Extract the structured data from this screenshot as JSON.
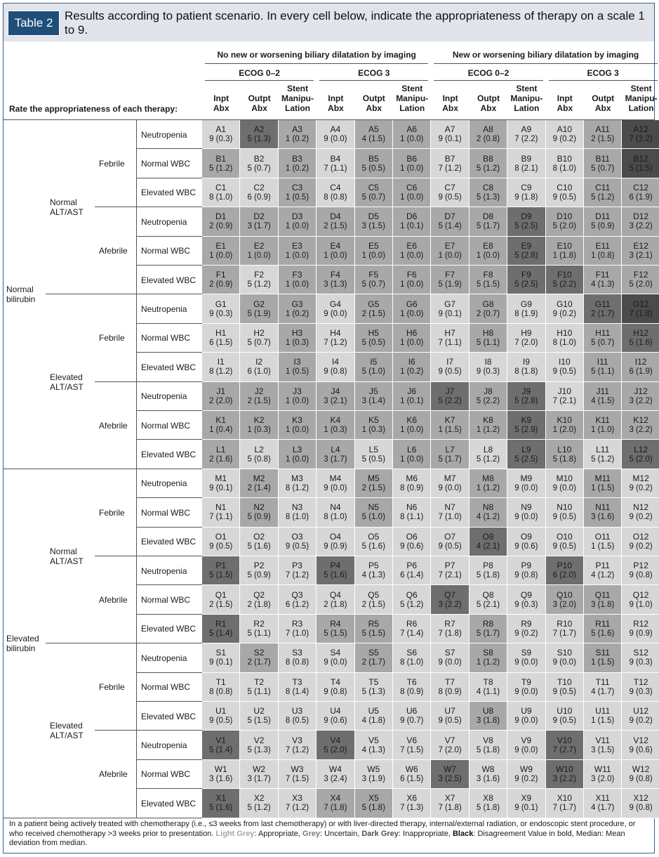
{
  "header": {
    "table_label": "Table 2",
    "title": "Results according to patient scenario. In every cell below, indicate the appropriateness of therapy on a scale 1 to 9."
  },
  "column_groups": {
    "imaging": [
      "No new or worsening biliary dilatation by imaging",
      "New or worsening biliary dilatation by imaging"
    ],
    "ecog": [
      "ECOG 0–2",
      "ECOG 3",
      "ECOG 0–2",
      "ECOG 3"
    ],
    "therapies": [
      "Inpt\nAbx",
      "Outpt\nAbx",
      "Stent\nManipu-\nLation"
    ]
  },
  "row_header_label": "Rate the appropriateness of each therapy:",
  "row_labels": {
    "bilirubin": [
      "Normal bilirubin",
      "Elevated bilirubin"
    ],
    "alt": [
      "Normal ALT/AST",
      "Elevated ALT/AST"
    ],
    "fever": [
      "Febrile",
      "Afebrile"
    ],
    "wbc": [
      "Neutropenia",
      "Normal WBC",
      "Elevated WBC"
    ]
  },
  "tone_legend": {
    "L": "#d7d7d7",
    "M": "#a8a8a8",
    "D": "#6e6e6e",
    "B": "#4b4b4b"
  },
  "rows": [
    {
      "letter": "A",
      "cells": [
        "9 (0.3)|L",
        "5 (1.3)|D",
        "1 (0.2)|M",
        "9 (0.0)|L",
        "4 (1.5)|M",
        "1 (0.0)|M",
        "9 (0.1)|L",
        "2 (0.8)|M",
        "7 (2.2)|L",
        "9 (0.2)|L",
        "2 (1.5)|M",
        "7 (2.2)|B"
      ]
    },
    {
      "letter": "B",
      "cells": [
        "5 (1.2)|M",
        "5 (0.7)|L",
        "1 (0.2)|M",
        "7 (1.1)|L",
        "5 (0.5)|M",
        "1 (0.0)|M",
        "7 (1.2)|L",
        "5 (1.2)|M",
        "8 (2.1)|L",
        "8 (1.0)|L",
        "5 (0.7)|M",
        "5 (1.5)|B"
      ]
    },
    {
      "letter": "C",
      "cells": [
        "8 (1.0)|L",
        "6 (0.9)|L",
        "1 (0.5)|M",
        "8 (0.8)|L",
        "5 (0.7)|M",
        "1 (0.0)|M",
        "9 (0.5)|L",
        "5 (1.3)|M",
        "9 (1.8)|L",
        "9 (0.5)|L",
        "5 (1.2)|M",
        "6 (1.9)|M"
      ]
    },
    {
      "letter": "D",
      "cells": [
        "2 (0.9)|M",
        "3 (1.7)|M",
        "1 (0.0)|M",
        "2 (1.5)|M",
        "3 (1.5)|M",
        "1 (0.1)|M",
        "5 (1.4)|M",
        "5 (1.7)|M",
        "5 (2.5)|D",
        "5 (2.0)|M",
        "5 (0.9)|M",
        "3 (2.2)|M"
      ]
    },
    {
      "letter": "E",
      "cells": [
        "1 (0.0)|M",
        "1 (0.0)|M",
        "1 (0.0)|M",
        "1 (0.0)|M",
        "1 (0.0)|M",
        "1 (0.0)|M",
        "1 (0.0)|M",
        "1 (0.0)|M",
        "5 (2.8)|D",
        "1 (1.8)|M",
        "1 (0.8)|M",
        "3 (2.1)|M"
      ]
    },
    {
      "letter": "F",
      "cells": [
        "2 (0.9)|M",
        "5 (1.2)|L",
        "1 (0.0)|M",
        "3 (1.3)|M",
        "5 (0.7)|M",
        "1 (0.0)|M",
        "5 (1.9)|M",
        "5 (1.5)|M",
        "5 (2.5)|D",
        "5 (2.2)|D",
        "4 (1.3)|M",
        "5 (2.0)|M"
      ]
    },
    {
      "letter": "G",
      "cells": [
        "9 (0.3)|L",
        "5 (1.9)|M",
        "1 (0.2)|M",
        "9 (0.0)|L",
        "2 (1.5)|M",
        "1 (0.0)|M",
        "9 (0.1)|L",
        "2 (0.7)|M",
        "8 (1.9)|L",
        "9 (0.2)|L",
        "2 (1.7)|D",
        "7 (1.8)|B"
      ]
    },
    {
      "letter": "H",
      "cells": [
        "6 (1.5)|L",
        "5 (0.7)|L",
        "1 (0.3)|M",
        "7 (1.2)|L",
        "5 (0.5)|M",
        "1 (0.0)|M",
        "7 (1.1)|L",
        "5 (1.1)|M",
        "7 (2.0)|L",
        "8 (1.0)|L",
        "5 (0.7)|M",
        "5 (1.6)|D"
      ]
    },
    {
      "letter": "I",
      "cells": [
        "8 (1.2)|L",
        "6 (1.0)|L",
        "1 (0.5)|M",
        "9 (0.8)|L",
        "5 (1.0)|M",
        "1 (0.2)|M",
        "9 (0.5)|L",
        "9 (0.3)|L",
        "8 (1.8)|L",
        "9 (0.5)|L",
        "5 (1.1)|M",
        "6 (1.9)|M"
      ]
    },
    {
      "letter": "J",
      "cells": [
        "2 (2.0)|M",
        "2 (1.5)|M",
        "1 (0.0)|M",
        "3 (2.1)|M",
        "3 (1.4)|M",
        "1 (0.1)|M",
        "5 (2.2)|D",
        "5 (2.2)|M",
        "5 (2.8)|D",
        "7 (2.1)|L",
        "4 (1.5)|M",
        "3 (2.2)|M"
      ]
    },
    {
      "letter": "K",
      "cells": [
        "1 (0.4)|M",
        "1 (0.3)|M",
        "1 (0.0)|M",
        "1 (0.3)|M",
        "1 (0.3)|M",
        "1 (0.0)|M",
        "1 (1.5)|M",
        "1 (1.2)|M",
        "5 (2.9)|D",
        "1 (2.0)|M",
        "1 (1.0)|M",
        "3 (2.2)|M"
      ]
    },
    {
      "letter": "L",
      "cells": [
        "2 (1.6)|M",
        "5 (0.8)|L",
        "1 (0.0)|M",
        "3 (1.7)|M",
        "5 (0.5)|L",
        "1 (0.0)|M",
        "5 (1.7)|M",
        "5 (1.2)|L",
        "5 (2.5)|D",
        "5 (1.8)|M",
        "5 (1.2)|L",
        "5 (2.0)|D"
      ]
    },
    {
      "letter": "M",
      "cells": [
        "9 (0.1)|L",
        "2 (1.4)|M",
        "8 (1.2)|L",
        "9 (0.0)|L",
        "2 (1.5)|M",
        "8 (0.9)|L",
        "9 (0.0)|L",
        "1 (1.2)|M",
        "9 (0.0)|L",
        "9 (0.0)|L",
        "1 (1.5)|M",
        "9 (0.2)|L"
      ]
    },
    {
      "letter": "N",
      "cells": [
        "7 (1.1)|L",
        "5 (0.9)|M",
        "8 (1.0)|L",
        "8 (1.0)|L",
        "5 (1.0)|M",
        "8 (1.1)|L",
        "7 (1.0)|L",
        "4 (1.2)|M",
        "9 (0.0)|L",
        "9 (0.5)|L",
        "3 (1.6)|M",
        "9 (0.2)|L"
      ]
    },
    {
      "letter": "O",
      "cells": [
        "9 (0.5)|L",
        "5 (1.6)|L",
        "9 (0.5)|L",
        "9 (0.9)|L",
        "5 (1.6)|L",
        "9 (0.6)|L",
        "9 (0.5)|L",
        "4 (2.1)|D",
        "9 (0.6)|L",
        "9 (0.5)|L",
        "1 (1.5)|L",
        "9 (0.2)|L"
      ]
    },
    {
      "letter": "P",
      "cells": [
        "5 (1.5)|D",
        "5 (0.9)|L",
        "7 (1.2)|L",
        "5 (1.6)|D",
        "4 (1.3)|L",
        "6 (1.4)|L",
        "7 (2.1)|L",
        "5 (1.8)|L",
        "9 (0.8)|L",
        "6 (2.0)|D",
        "4 (1.2)|L",
        "9 (0.8)|L"
      ]
    },
    {
      "letter": "Q",
      "cells": [
        "2 (1.5)|L",
        "2 (1.8)|L",
        "6 (1.2)|L",
        "2 (1.8)|L",
        "2 (1.5)|L",
        "5 (1.2)|L",
        "3 (2.2)|D",
        "5 (2.1)|L",
        "9 (0.3)|L",
        "3 (2.0)|M",
        "3 (1.8)|M",
        "9 (1.0)|L"
      ]
    },
    {
      "letter": "R",
      "cells": [
        "5 (1.4)|D",
        "5 (1.1)|L",
        "7 (1.0)|L",
        "5 (1.5)|M",
        "5 (1.5)|M",
        "7 (1.4)|L",
        "7 (1.8)|L",
        "5 (1.7)|M",
        "9 (0.2)|L",
        "7 (1.7)|L",
        "5 (1.6)|M",
        "9 (0.9)|L"
      ]
    },
    {
      "letter": "S",
      "cells": [
        "9 (0.1)|L",
        "2 (1.7)|M",
        "8 (0.8)|L",
        "9 (0.0)|L",
        "2 (1.7)|M",
        "8 (1.0)|L",
        "9 (0.0)|L",
        "1 (1.2)|M",
        "9 (0.0)|L",
        "9 (0.0)|L",
        "1 (1.5)|M",
        "9 (0.3)|L"
      ]
    },
    {
      "letter": "T",
      "cells": [
        "8 (0.8)|L",
        "5 (1.1)|L",
        "8 (1.4)|L",
        "9 (0.8)|L",
        "5 (1.3)|L",
        "8 (0.9)|L",
        "8 (0.9)|L",
        "4 (1.1)|L",
        "9 (0.0)|L",
        "9 (0.5)|L",
        "4 (1.7)|L",
        "9 (0.3)|L"
      ]
    },
    {
      "letter": "U",
      "cells": [
        "9 (0.5)|L",
        "5 (1.5)|L",
        "8 (0.5)|L",
        "9 (0.6)|L",
        "4 (1.8)|L",
        "9 (0.7)|L",
        "9 (0.5)|L",
        "3 (1.8)|M",
        "9 (0.0)|L",
        "9 (0.5)|L",
        "1 (1.5)|L",
        "9 (0.2)|L"
      ]
    },
    {
      "letter": "V",
      "cells": [
        "5 (1.4)|D",
        "5 (1.3)|L",
        "7 (1.2)|L",
        "5 (2.0)|D",
        "4 (1.3)|L",
        "7 (1.5)|L",
        "7 (2.0)|L",
        "5 (1.8)|L",
        "9 (0.0)|L",
        "7 (2.7)|D",
        "3 (1.5)|L",
        "9 (0.6)|L"
      ]
    },
    {
      "letter": "W",
      "cells": [
        "3 (1.6)|L",
        "3 (1.7)|L",
        "7 (1.5)|L",
        "3 (2.4)|L",
        "3 (1.9)|L",
        "6 (1.5)|L",
        "3 (2.5)|D",
        "3 (1.6)|L",
        "9 (0.2)|L",
        "3 (2.2)|D",
        "3 (2.0)|L",
        "9 (0.8)|L"
      ]
    },
    {
      "letter": "X",
      "cells": [
        "5 (1.6)|D",
        "5 (1.2)|L",
        "7 (1.2)|L",
        "7 (1.8)|M",
        "5 (1.8)|M",
        "7 (1.3)|L",
        "7 (1.8)|L",
        "5 (1.8)|L",
        "9 (0.1)|L",
        "7 (1.7)|L",
        "4 (1.7)|L",
        "9 (0.8)|L"
      ]
    }
  ],
  "footnote": {
    "main": "In a patient being actively treated with chemotherapy (i.e., ≤3 weeks from last chemotherapy) or with liver-directed therapy, internal/external radiation, or endoscopic stent procedure, or who received chemotherapy >3 weeks prior to presentation.",
    "light_grey": "Light Grey",
    "light_grey_desc": ": Appropriate, ",
    "grey": "Grey",
    "grey_desc": ": Uncertain, ",
    "dark_grey": "Dark Grey",
    "dark_grey_desc": ": Inappropriate, ",
    "black": "Black",
    "black_desc": ": Disagreement Value in bold, Median: Mean deviation from median."
  }
}
